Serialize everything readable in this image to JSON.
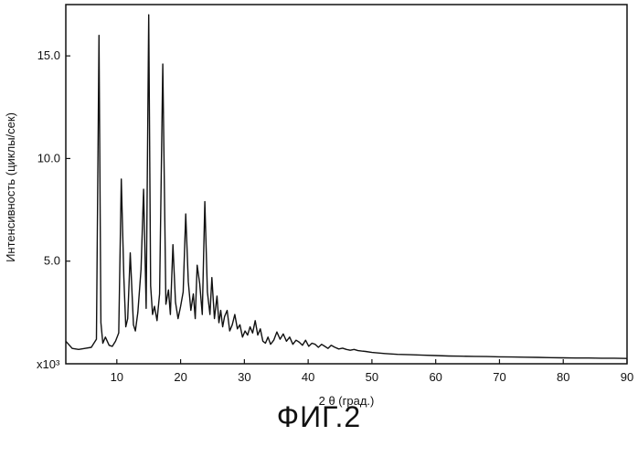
{
  "figure": {
    "caption": "ФИГ.2"
  },
  "chart_data": {
    "type": "line",
    "xlabel": "2 θ  (град.)",
    "ylabel": "Интенсивность (циклы/сек)",
    "y_multiplier_label": "x10³",
    "xlim": [
      2,
      90
    ],
    "ylim": [
      0,
      17.5
    ],
    "x_ticks": [
      10,
      20,
      30,
      40,
      50,
      60,
      70,
      80,
      90
    ],
    "x_tick_labels": [
      "10",
      "20",
      "30",
      "40",
      "50",
      "60",
      "70",
      "80",
      "90"
    ],
    "y_ticks": [
      5,
      10,
      15
    ],
    "y_tick_labels": [
      "5.0",
      "10.0",
      "15.0"
    ],
    "grid": false,
    "color": "#111111",
    "series": [
      {
        "x": [
          2.0,
          3.0,
          4.0,
          5.0,
          6.0,
          6.8,
          7.2,
          7.5,
          7.8,
          8.2,
          8.8,
          9.3,
          9.8,
          10.3,
          10.7,
          11.1,
          11.4,
          11.7,
          12.1,
          12.6,
          12.9,
          13.3,
          13.8,
          14.2,
          14.6,
          15.0,
          15.3,
          15.6,
          15.9,
          16.3,
          16.7,
          17.2,
          17.7,
          18.1,
          18.4,
          18.8,
          19.2,
          19.6,
          20.0,
          20.4,
          20.8,
          21.2,
          21.6,
          22.0,
          22.3,
          22.6,
          23.0,
          23.4,
          23.8,
          24.2,
          24.6,
          24.9,
          25.3,
          25.7,
          26.0,
          26.3,
          26.6,
          26.9,
          27.3,
          27.7,
          28.1,
          28.5,
          28.9,
          29.3,
          29.7,
          30.1,
          30.5,
          30.9,
          31.3,
          31.7,
          32.1,
          32.5,
          32.9,
          33.3,
          33.7,
          34.1,
          34.6,
          35.1,
          35.6,
          36.1,
          36.6,
          37.1,
          37.6,
          38.1,
          38.6,
          39.1,
          39.6,
          40.1,
          40.6,
          41.1,
          41.6,
          42.1,
          42.6,
          43.1,
          43.6,
          44.2,
          44.8,
          45.4,
          46.0,
          46.6,
          47.2,
          47.8,
          48.4,
          49.0,
          50.0,
          52.0,
          54.0,
          56.0,
          58.0,
          60.0,
          62.0,
          64.0,
          66.0,
          68.0,
          70.0,
          72.0,
          74.0,
          76.0,
          78.0,
          80.0,
          82.0,
          84.0,
          86.0,
          88.0,
          90.0
        ],
        "y": [
          1.1,
          0.75,
          0.7,
          0.75,
          0.8,
          1.2,
          16.0,
          2.0,
          1.0,
          1.3,
          0.9,
          0.85,
          1.1,
          1.5,
          9.0,
          4.2,
          1.8,
          2.2,
          5.4,
          1.9,
          1.6,
          2.5,
          4.6,
          8.5,
          2.7,
          17.0,
          3.8,
          2.4,
          2.8,
          2.1,
          3.4,
          14.6,
          2.9,
          3.6,
          2.4,
          5.8,
          3.0,
          2.2,
          2.8,
          3.5,
          7.3,
          4.0,
          2.6,
          3.4,
          2.2,
          4.8,
          3.9,
          2.4,
          7.9,
          3.5,
          2.4,
          4.2,
          2.2,
          3.3,
          2.0,
          2.6,
          1.8,
          2.3,
          2.6,
          1.6,
          1.9,
          2.4,
          1.7,
          1.9,
          1.3,
          1.6,
          1.4,
          1.8,
          1.5,
          2.1,
          1.4,
          1.7,
          1.1,
          1.0,
          1.3,
          0.95,
          1.15,
          1.55,
          1.2,
          1.45,
          1.1,
          1.3,
          0.95,
          1.15,
          1.05,
          0.9,
          1.15,
          0.85,
          1.0,
          0.95,
          0.8,
          0.95,
          0.85,
          0.75,
          0.9,
          0.8,
          0.72,
          0.76,
          0.7,
          0.66,
          0.7,
          0.64,
          0.62,
          0.6,
          0.55,
          0.5,
          0.46,
          0.44,
          0.42,
          0.4,
          0.38,
          0.37,
          0.36,
          0.35,
          0.34,
          0.33,
          0.32,
          0.31,
          0.3,
          0.29,
          0.28,
          0.28,
          0.27,
          0.27,
          0.26
        ]
      }
    ]
  }
}
